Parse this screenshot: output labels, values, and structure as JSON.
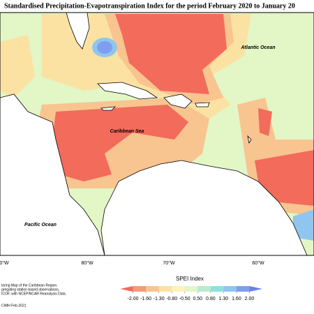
{
  "header": {
    "title": "Standardised Precipitation-Evapotranspiration Index for the period February 2020 to January 20"
  },
  "map": {
    "labels": [
      "Atlantic Ocean",
      "Caribbean Sea",
      "Pacific Ocean"
    ],
    "longitudes": [
      "0°W",
      "80°W",
      "70°W",
      "60°W"
    ]
  },
  "legend": {
    "title": "SPEI Index",
    "colors": [
      "#f26b5b",
      "#f59a78",
      "#f8c490",
      "#fbe2a3",
      "#fdf3b8",
      "#e2f6c6",
      "#b8ecce",
      "#8fe0de",
      "#8ec6ef",
      "#7f9ef0",
      "#6d80e8"
    ],
    "ticks": [
      {
        "value": -2,
        "label": "-2.00"
      },
      {
        "value": -1.6,
        "label": "-1.60"
      },
      {
        "value": -1.3,
        "label": "-1.30"
      },
      {
        "value": -0.8,
        "label": "-0.80"
      },
      {
        "value": -0.5,
        "label": "-0.50"
      },
      {
        "value": 0.5,
        "label": "0.50"
      },
      {
        "value": 0.8,
        "label": "0.80"
      },
      {
        "value": 1.3,
        "label": "1.30"
      },
      {
        "value": 1.6,
        "label": "1.60"
      },
      {
        "value": 2,
        "label": "2.00"
      }
    ]
  },
  "footer": {
    "notes": [
      "toring Map of the Caribbean Region.",
      "gregating station based observations,",
      "ICOF, with NCEP/NCAR Reanalysis Data."
    ],
    "credit": "CIMH Feb-2021"
  }
}
